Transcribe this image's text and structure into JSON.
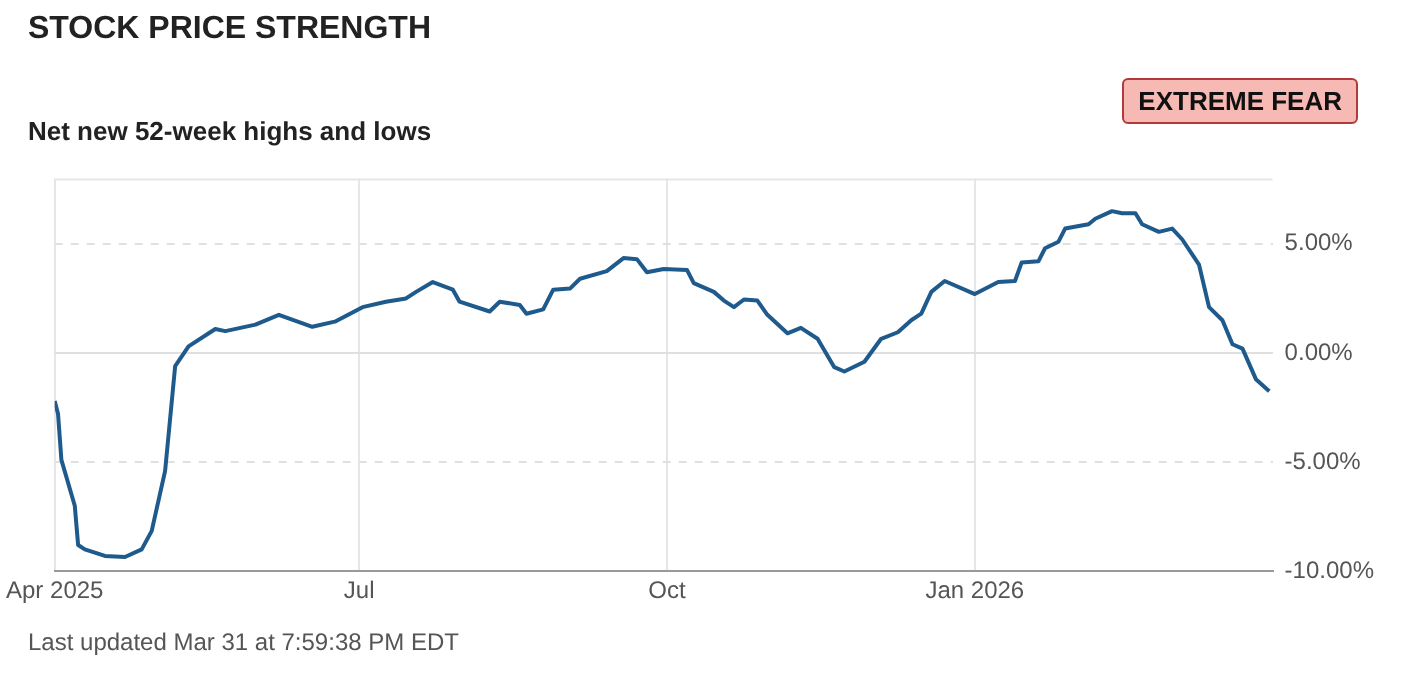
{
  "chart_data": {
    "type": "line",
    "title": "STOCK PRICE STRENGTH",
    "subtitle": "Net new 52-week highs and lows",
    "annotations": [
      "EXTREME FEAR",
      "Last updated Mar 31 at 7:59:38 PM EDT"
    ],
    "x": [
      "2025-04-01",
      "2025-04-02",
      "2025-04-03",
      "2025-04-07",
      "2025-04-08",
      "2025-04-10",
      "2025-04-16",
      "2025-04-22",
      "2025-04-27",
      "2025-04-30",
      "2025-05-04",
      "2025-05-07",
      "2025-05-11",
      "2025-05-19",
      "2025-05-22",
      "2025-05-31",
      "2025-06-07",
      "2025-06-17",
      "2025-06-24",
      "2025-07-02",
      "2025-07-09",
      "2025-07-15",
      "2025-07-18",
      "2025-07-23",
      "2025-07-29",
      "2025-07-31",
      "2025-08-09",
      "2025-08-12",
      "2025-08-18",
      "2025-08-20",
      "2025-08-25",
      "2025-08-28",
      "2025-09-02",
      "2025-09-05",
      "2025-09-13",
      "2025-09-18",
      "2025-09-22",
      "2025-09-25",
      "2025-09-30",
      "2025-10-07",
      "2025-10-09",
      "2025-10-15",
      "2025-10-18",
      "2025-10-21",
      "2025-10-24",
      "2025-10-28",
      "2025-10-31",
      "2025-11-06",
      "2025-11-10",
      "2025-11-15",
      "2025-11-20",
      "2025-11-23",
      "2025-11-29",
      "2025-12-04",
      "2025-12-09",
      "2025-12-13",
      "2025-12-16",
      "2025-12-19",
      "2025-12-23",
      "2026-01-01",
      "2026-01-08",
      "2026-01-13",
      "2026-01-15",
      "2026-01-20",
      "2026-01-22",
      "2026-01-26",
      "2026-01-28",
      "2026-02-04",
      "2026-02-06",
      "2026-02-11",
      "2026-02-14",
      "2026-02-18",
      "2026-02-20",
      "2026-02-25",
      "2026-03-01",
      "2026-03-04",
      "2026-03-09",
      "2026-03-12",
      "2026-03-16",
      "2026-03-19",
      "2026-03-22",
      "2026-03-26",
      "2026-03-30"
    ],
    "series": [
      {
        "color": "#1f5a8c",
        "values": [
          -2.2,
          -2.8,
          -4.9,
          -7.0,
          -8.8,
          -9.0,
          -9.3,
          -9.35,
          -9.0,
          -8.15,
          -5.4,
          -0.6,
          0.3,
          1.1,
          1.0,
          1.3,
          1.75,
          1.2,
          1.45,
          2.1,
          2.35,
          2.5,
          2.8,
          3.25,
          2.9,
          2.35,
          1.9,
          2.35,
          2.2,
          1.8,
          2.0,
          2.9,
          2.95,
          3.4,
          3.75,
          4.35,
          4.3,
          3.7,
          3.85,
          3.8,
          3.2,
          2.8,
          2.4,
          2.1,
          2.45,
          2.4,
          1.75,
          0.9,
          1.15,
          0.65,
          -0.65,
          -0.85,
          -0.4,
          0.65,
          0.95,
          1.5,
          1.8,
          2.8,
          3.3,
          2.7,
          3.25,
          3.3,
          4.15,
          4.2,
          4.8,
          5.1,
          5.7,
          5.9,
          6.15,
          6.5,
          6.4,
          6.4,
          5.9,
          5.55,
          5.7,
          5.2,
          4.05,
          2.1,
          1.5,
          0.4,
          0.2,
          -1.2,
          -1.75
        ]
      }
    ],
    "xlim": [
      "2025-04-01",
      "2026-03-31"
    ],
    "xticks": [
      {
        "value": "2025-04-01",
        "label": "Apr 2025"
      },
      {
        "value": "2025-07-01",
        "label": "Jul"
      },
      {
        "value": "2025-10-01",
        "label": "Oct"
      },
      {
        "value": "2026-01-01",
        "label": "Jan 2026"
      }
    ],
    "ylim": [
      -10,
      8
    ],
    "yticks": [
      {
        "value": -10,
        "label": "-10.00%"
      },
      {
        "value": -5,
        "label": "-5.00%"
      },
      {
        "value": 0,
        "label": "0.00%"
      },
      {
        "value": 5,
        "label": "5.00%"
      }
    ],
    "grid": true,
    "legend": false,
    "marker": "none",
    "line_style": "solid"
  }
}
